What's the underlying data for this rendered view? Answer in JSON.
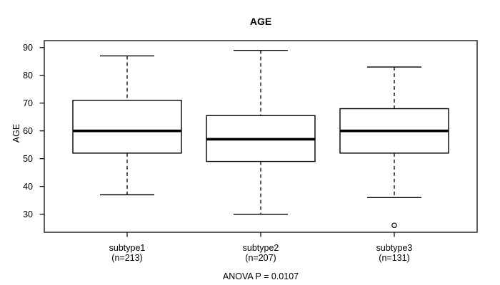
{
  "figure": {
    "title": "AGE",
    "y_axis_label": "AGE",
    "footer": "ANOVA P = 0.0107"
  },
  "chart_data": {
    "type": "boxplot",
    "title": "AGE",
    "xlabel": "",
    "ylabel": "AGE",
    "ylim": [
      23.5,
      92.5
    ],
    "y_ticks": [
      30,
      40,
      50,
      60,
      70,
      80,
      90
    ],
    "grid": false,
    "annotation": "ANOVA P = 0.0107",
    "groups": [
      {
        "label": "subtype1",
        "sublabel": "(n=213)",
        "n": 213,
        "whisker_low": 37,
        "q1": 52,
        "median": 60,
        "q3": 71,
        "whisker_high": 87,
        "outliers": []
      },
      {
        "label": "subtype2",
        "sublabel": "(n=207)",
        "n": 207,
        "whisker_low": 30,
        "q1": 49,
        "median": 57,
        "q3": 65.5,
        "whisker_high": 89,
        "outliers": []
      },
      {
        "label": "subtype3",
        "sublabel": "(n=131)",
        "n": 131,
        "whisker_low": 36,
        "q1": 52,
        "median": 60,
        "q3": 68,
        "whisker_high": 83,
        "outliers": [
          26
        ]
      }
    ],
    "colors": {
      "line": "#000000",
      "box_fill": "#ffffff",
      "frame": "#4d4d4d",
      "background": "#ffffff",
      "text": "#000000"
    }
  }
}
